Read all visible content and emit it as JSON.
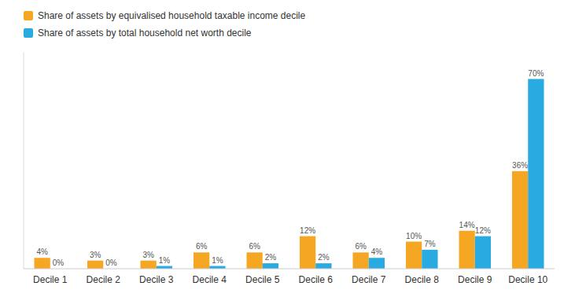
{
  "chart_data": {
    "type": "bar",
    "categories": [
      "Decile 1",
      "Decile 2",
      "Decile 3",
      "Decile 4",
      "Decile 5",
      "Decile 6",
      "Decile 7",
      "Decile 8",
      "Decile 9",
      "Decile 10"
    ],
    "series": [
      {
        "name": "Share of assets by equivalised household taxable income decile",
        "color": "#F5A623",
        "values": [
          4,
          3,
          3,
          6,
          6,
          12,
          6,
          10,
          14,
          36
        ],
        "value_labels": [
          "4%",
          "3%",
          "3%",
          "6%",
          "6%",
          "12%",
          "6%",
          "10%",
          "14%",
          "36%"
        ]
      },
      {
        "name": "Share of assets by total household net worth decile",
        "color": "#29ABE2",
        "values": [
          0,
          0,
          1,
          1,
          2,
          2,
          4,
          7,
          12,
          70
        ],
        "value_labels": [
          "0%",
          "0%",
          "1%",
          "1%",
          "2%",
          "2%",
          "4%",
          "7%",
          "12%",
          "70%"
        ]
      }
    ],
    "ylim": [
      0,
      80
    ],
    "grid": false,
    "legend": "upper left",
    "data_labels": true,
    "tick_labels": "x"
  }
}
